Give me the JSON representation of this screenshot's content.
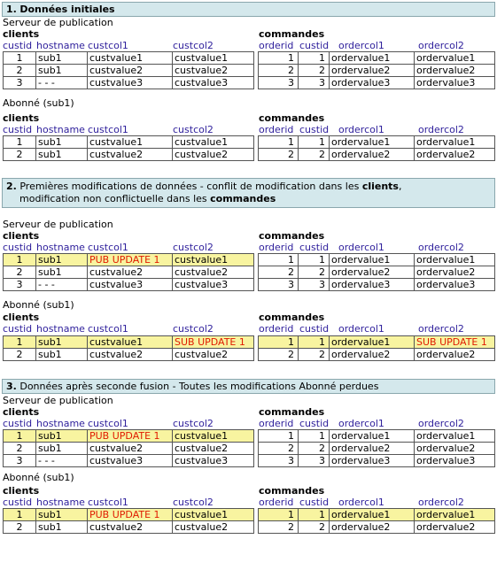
{
  "colors": {
    "band_bg": "#d4e8ec",
    "header_text": "#2d1e9b",
    "highlight": "#f8f4a0",
    "update_text": "#e01b00"
  },
  "sections": [
    {
      "title_num": "1.",
      "title_bold": "Données initiales",
      "pub_label": "Serveur de publication",
      "sub_label": "Abonné (sub1)",
      "pub": {
        "clients_title": "clients",
        "commandes_title": "commandes",
        "client_headers": [
          "custid",
          "hostname",
          "custcol1",
          "custcol2"
        ],
        "order_headers": [
          "orderid",
          "custid",
          "ordercol1",
          "ordercol2"
        ],
        "clients": [
          [
            "1",
            "sub1",
            "custvalue1",
            "custvalue1"
          ],
          [
            "2",
            "sub1",
            "custvalue2",
            "custvalue2"
          ],
          [
            "3",
            "- - -",
            "custvalue3",
            "custvalue3"
          ]
        ],
        "orders": [
          [
            "1",
            "1",
            "ordervalue1",
            "ordervalue1"
          ],
          [
            "2",
            "2",
            "ordervalue2",
            "ordervalue2"
          ],
          [
            "3",
            "3",
            "ordervalue3",
            "ordervalue3"
          ]
        ]
      },
      "sub": {
        "clients_title": "clients",
        "commandes_title": "commandes",
        "client_headers": [
          "custid",
          "hostname",
          "custcol1",
          "custcol2"
        ],
        "order_headers": [
          "orderid",
          "custid",
          "ordercol1",
          "ordercol2"
        ],
        "clients": [
          [
            "1",
            "sub1",
            "custvalue1",
            "custvalue1"
          ],
          [
            "2",
            "sub1",
            "custvalue2",
            "custvalue2"
          ]
        ],
        "orders": [
          [
            "1",
            "1",
            "ordervalue1",
            "ordervalue1"
          ],
          [
            "2",
            "2",
            "ordervalue2",
            "ordervalue2"
          ]
        ]
      }
    },
    {
      "title_num": "2.",
      "title_pre": "Premières modifications de données - conflit de modification dans les ",
      "title_bold1": "clients",
      "title_mid": ",",
      "title_line2_pre": "modification non conflictuelle dans les ",
      "title_bold2": "commandes",
      "pub_label": "Serveur de publication",
      "sub_label": "Abonné (sub1)",
      "pub": {
        "clients_title": "clients",
        "commandes_title": "commandes",
        "client_headers": [
          "custid",
          "hostname",
          "custcol1",
          "custcol2"
        ],
        "order_headers": [
          "orderid",
          "custid",
          "ordercol1",
          "ordercol2"
        ],
        "clients": [
          [
            "1",
            "sub1",
            "PUB UPDATE 1",
            "custvalue1"
          ],
          [
            "2",
            "sub1",
            "custvalue2",
            "custvalue2"
          ],
          [
            "3",
            "- - -",
            "custvalue3",
            "custvalue3"
          ]
        ],
        "orders": [
          [
            "1",
            "1",
            "ordervalue1",
            "ordervalue1"
          ],
          [
            "2",
            "2",
            "ordervalue2",
            "ordervalue2"
          ],
          [
            "3",
            "3",
            "ordervalue3",
            "ordervalue3"
          ]
        ]
      },
      "sub": {
        "clients_title": "clients",
        "commandes_title": "commandes",
        "client_headers": [
          "custid",
          "hostname",
          "custcol1",
          "custcol2"
        ],
        "order_headers": [
          "orderid",
          "custid",
          "ordercol1",
          "ordercol2"
        ],
        "clients": [
          [
            "1",
            "sub1",
            "custvalue1",
            "SUB UPDATE 1"
          ],
          [
            "2",
            "sub1",
            "custvalue2",
            "custvalue2"
          ]
        ],
        "orders": [
          [
            "1",
            "1",
            "ordervalue1",
            "SUB UPDATE 1"
          ],
          [
            "2",
            "2",
            "ordervalue2",
            "ordervalue2"
          ]
        ]
      }
    },
    {
      "title_num": "3.",
      "title_rest": "Données après seconde fusion - Toutes les modifications Abonné perdues",
      "pub_label": "Serveur de publication",
      "sub_label": "Abonné (sub1)",
      "pub": {
        "clients_title": "clients",
        "commandes_title": "commandes",
        "client_headers": [
          "custid",
          "hostname",
          "custcol1",
          "custcol2"
        ],
        "order_headers": [
          "orderid",
          "custid",
          "ordercol1",
          "ordercol2"
        ],
        "clients": [
          [
            "1",
            "sub1",
            "PUB UPDATE 1",
            "custvalue1"
          ],
          [
            "2",
            "sub1",
            "custvalue2",
            "custvalue2"
          ],
          [
            "3",
            "- - -",
            "custvalue3",
            "custvalue3"
          ]
        ],
        "orders": [
          [
            "1",
            "1",
            "ordervalue1",
            "ordervalue1"
          ],
          [
            "2",
            "2",
            "ordervalue2",
            "ordervalue2"
          ],
          [
            "3",
            "3",
            "ordervalue3",
            "ordervalue3"
          ]
        ]
      },
      "sub": {
        "clients_title": "clients",
        "commandes_title": "commandes",
        "client_headers": [
          "custid",
          "hostname",
          "custcol1",
          "custcol2"
        ],
        "order_headers": [
          "orderid",
          "custid",
          "ordercol1",
          "ordercol2"
        ],
        "clients": [
          [
            "1",
            "sub1",
            "PUB UPDATE 1",
            "custvalue1"
          ],
          [
            "2",
            "sub1",
            "custvalue2",
            "custvalue2"
          ]
        ],
        "orders": [
          [
            "1",
            "1",
            "ordervalue1",
            "ordervalue1"
          ],
          [
            "2",
            "2",
            "ordervalue2",
            "ordervalue2"
          ]
        ]
      }
    }
  ]
}
